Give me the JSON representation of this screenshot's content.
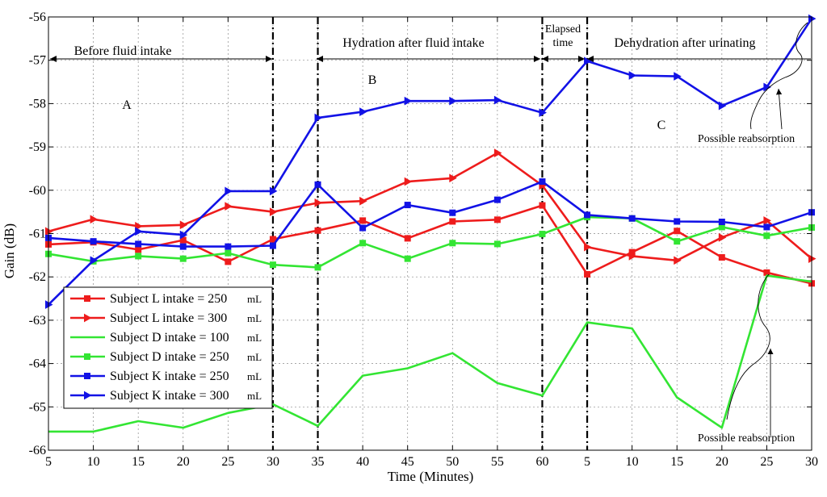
{
  "chart_data": {
    "type": "line",
    "xlabel": "Time (Minutes)",
    "ylabel": "Gain (dB)",
    "ylim": [
      -66,
      -56
    ],
    "grid": true,
    "x_tick_labels": [
      "5",
      "10",
      "15",
      "20",
      "25",
      "30",
      "35",
      "40",
      "45",
      "50",
      "55",
      "60",
      "5",
      "10",
      "15",
      "20",
      "25",
      "30"
    ],
    "y_ticks": [
      -66,
      -65,
      -64,
      -63,
      -62,
      -61,
      -60,
      -59,
      -58,
      -57,
      -56
    ],
    "series": [
      {
        "name": "Subject L intake = 250",
        "unit": "mL",
        "color": "#ee1c1c",
        "marker": "square",
        "values": [
          -61.25,
          -61.2,
          -61.37,
          -61.15,
          -61.65,
          -61.13,
          -60.93,
          -60.7,
          -61.11,
          -60.72,
          -60.68,
          -60.35,
          -61.94,
          -61.43,
          -60.94,
          -61.55,
          -61.9,
          -62.15
        ]
      },
      {
        "name": "Subject L intake = 300",
        "unit": "mL",
        "color": "#ee1c1c",
        "marker": "triangle-right",
        "values": [
          -60.95,
          -60.67,
          -60.83,
          -60.8,
          -60.37,
          -60.5,
          -60.29,
          -60.25,
          -59.8,
          -59.72,
          -59.14,
          -59.89,
          -61.31,
          -61.52,
          -61.62,
          -61.09,
          -60.7,
          -61.58
        ]
      },
      {
        "name": "Subject D intake = 100",
        "unit": "mL",
        "color": "#33e533",
        "marker": "none",
        "values": [
          -65.57,
          -65.57,
          -65.33,
          -65.48,
          -65.14,
          -64.94,
          -65.44,
          -64.28,
          -64.11,
          -63.76,
          -64.45,
          -64.74,
          -63.05,
          -63.19,
          -64.78,
          -65.48,
          -61.97,
          -62.11
        ]
      },
      {
        "name": "Subject D intake =  250",
        "unit": "mL",
        "color": "#33e533",
        "marker": "square",
        "values": [
          -61.47,
          -61.64,
          -61.52,
          -61.58,
          -61.45,
          -61.72,
          -61.78,
          -61.22,
          -61.58,
          -61.22,
          -61.24,
          -61.01,
          -60.62,
          -60.65,
          -61.18,
          -60.85,
          -61.05,
          -60.86
        ]
      },
      {
        "name": "Subject K intake = 250",
        "unit": "mL",
        "color": "#1212e6",
        "marker": "square",
        "values": [
          -61.1,
          -61.18,
          -61.24,
          -61.3,
          -61.3,
          -61.28,
          -59.87,
          -60.87,
          -60.34,
          -60.52,
          -60.22,
          -59.8,
          -60.57,
          -60.65,
          -60.72,
          -60.73,
          -60.85,
          -60.51
        ]
      },
      {
        "name": "Subject K intake = 300",
        "unit": "mL",
        "color": "#1212e6",
        "marker": "triangle-right",
        "values": [
          -62.64,
          -61.62,
          -60.95,
          -61.03,
          -60.02,
          -60.02,
          -58.33,
          -58.19,
          -57.94,
          -57.94,
          -57.92,
          -58.21,
          -57.02,
          -57.35,
          -57.37,
          -58.05,
          -57.62,
          -56.04
        ]
      }
    ],
    "phase_separators_after_index": [
      5,
      6,
      11,
      12
    ],
    "annotations": {
      "before": "Before fluid intake",
      "hydration": "Hydration after fluid intake",
      "elapsed_line1": "Elapsed",
      "elapsed_line2": "time",
      "dehydration": "Dehydration after urinating",
      "label_a": "A",
      "label_b": "B",
      "label_c": "C",
      "reabsorption_top": "Possible reabsorption",
      "reabsorption_bottom": "Possible reabsorption"
    }
  }
}
